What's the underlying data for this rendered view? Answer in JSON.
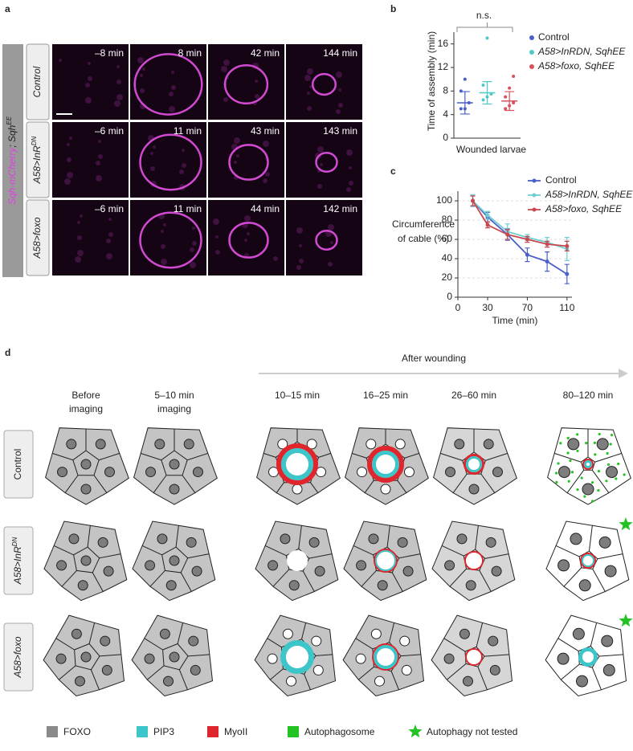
{
  "panel_labels": [
    "a",
    "b",
    "c",
    "d"
  ],
  "panel_a": {
    "side_label": {
      "magenta": "Sqh-mCherry",
      "rest": "; Sqh",
      "sup": "EE"
    },
    "rows": [
      {
        "label": {
          "main": "Control"
        },
        "times": [
          "–8 min",
          "8 min",
          "42 min",
          "144 min"
        ]
      },
      {
        "label": {
          "main": "A58>InR",
          "sup": "DN"
        },
        "times": [
          "–6 min",
          "11 min",
          "43 min",
          "143 min"
        ]
      },
      {
        "label": {
          "main": "A58>foxo"
        },
        "times": [
          "–6 min",
          "11 min",
          "44 min",
          "142 min"
        ]
      }
    ]
  },
  "chart_data": [
    {
      "type": "dot",
      "ylabel": "Time of assembly (min)",
      "xlabel": "Wounded larvae",
      "annotation": "n.s.",
      "ylim": [
        0,
        18
      ],
      "yticks": [
        0,
        4,
        8,
        12,
        16
      ],
      "series": [
        {
          "name": "Control",
          "color": "#4a5fc9",
          "values": [
            5,
            5,
            6,
            8,
            10
          ],
          "mean": 6,
          "sem": 1.9
        },
        {
          "name": "A58>InRDN, SqhEE",
          "color": "#4fc8c6",
          "values": [
            6.5,
            7,
            7.5,
            9,
            17
          ],
          "mean": 7.7,
          "sem": 1.9
        },
        {
          "name": "A58>foxo, SqhEE",
          "color": "#d9515e",
          "values": [
            5,
            5.5,
            6,
            7,
            8.5,
            10.5
          ],
          "mean": 6.3,
          "sem": 1.6
        }
      ]
    },
    {
      "type": "line",
      "ylabel": [
        "Circumference",
        "of cable (%)"
      ],
      "xlabel": "Time (min)",
      "x": [
        15,
        30,
        50,
        70,
        90,
        110
      ],
      "xlim": [
        0,
        115
      ],
      "xticks": [
        0,
        30,
        70,
        110
      ],
      "ylim": [
        0,
        110
      ],
      "yticks": [
        0,
        20,
        40,
        60,
        80,
        100
      ],
      "grid": true,
      "series": [
        {
          "name": "Control",
          "color": "#4a5fc9",
          "values": [
            100,
            83,
            65,
            44,
            37,
            24
          ],
          "errors": [
            6,
            5,
            6,
            7,
            10,
            10
          ]
        },
        {
          "name": "A58>InRDN, SqhEE",
          "color": "#6fcfd0",
          "values": [
            100,
            85,
            68,
            62,
            57,
            50
          ],
          "errors": [
            6,
            4,
            8,
            3,
            5,
            12
          ]
        },
        {
          "name": "A58>foxo, SqhEE",
          "color": "#c9474f",
          "values": [
            100,
            75,
            65,
            60,
            55,
            53
          ],
          "errors": [
            5,
            3,
            5,
            3,
            3,
            5
          ]
        }
      ]
    }
  ],
  "panel_d": {
    "arrow_label": "After wounding",
    "columns": [
      [
        "Before",
        "imaging"
      ],
      [
        "5–10 min",
        "imaging"
      ],
      [
        "10–15 min"
      ],
      [
        "16–25 min"
      ],
      [
        "26–60 min"
      ],
      [
        "80–120 min"
      ]
    ],
    "rows": [
      {
        "main": "Control"
      },
      {
        "main": "A58>InR",
        "sup": "DN"
      },
      {
        "main": "A58>foxo"
      }
    ],
    "legend": [
      {
        "label": "FOXO",
        "color": "#8a8a8a"
      },
      {
        "label": "PIP3",
        "color": "#3cc6c9"
      },
      {
        "label": "MyoII",
        "color": "#e0262d"
      },
      {
        "label": "Autophagosome",
        "color": "#22c322"
      },
      {
        "label": "Autophagy not tested",
        "color": "#22c322"
      }
    ]
  }
}
